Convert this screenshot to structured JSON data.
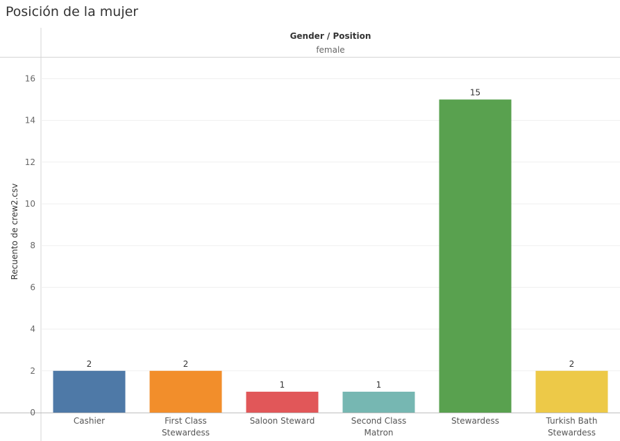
{
  "title": "Posición de la mujer",
  "header": {
    "label": "Gender / Position",
    "value": "female"
  },
  "chart_data": {
    "type": "bar",
    "title": "Posición de la mujer",
    "xlabel": "",
    "ylabel": "Recuento de crew2.csv",
    "ylim": [
      0,
      17
    ],
    "yticks": [
      0,
      2,
      4,
      6,
      8,
      10,
      12,
      14,
      16
    ],
    "grid": true,
    "categories": [
      "Cashier",
      "First Class Stewardess",
      "Saloon Steward",
      "Second Class Matron",
      "Stewardess",
      "Turkish Bath Stewardess"
    ],
    "values": [
      2,
      2,
      1,
      1,
      15,
      2
    ],
    "colors": [
      "#4e79a7",
      "#f28e2b",
      "#e15759",
      "#76b7b2",
      "#59a14f",
      "#edc948"
    ]
  }
}
